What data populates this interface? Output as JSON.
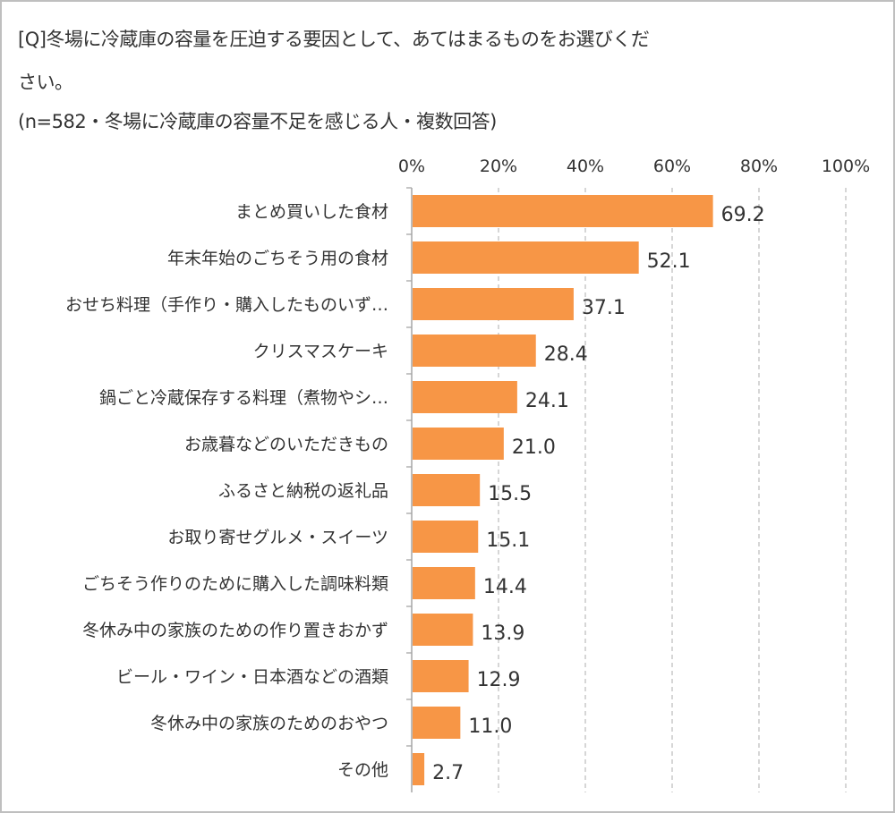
{
  "chart_data": {
    "type": "bar",
    "orientation": "horizontal",
    "title_lines": [
      "[Q]冬場に冷蔵庫の容量を圧迫する要因として、あてはまるものをお選びくだ",
      "さい。"
    ],
    "subtitle": "(n=582・冬場に冷蔵庫の容量不足を感じる人・複数回答)",
    "xlabel": "",
    "ylabel": "",
    "xlim": [
      0,
      100
    ],
    "x_ticks": [
      "0%",
      "20%",
      "40%",
      "60%",
      "80%",
      "100%"
    ],
    "x_tick_values": [
      0,
      20,
      40,
      60,
      80,
      100
    ],
    "axis_position": "top",
    "grid": "vertical dashed",
    "categories": [
      "まとめ買いした食材",
      "年末年始のごちそう用の食材",
      "おせち料理（手作り・購入したものいず…",
      "クリスマスケーキ",
      "鍋ごと冷蔵保存する料理（煮物やシ…",
      "お歳暮などのいただきもの",
      "ふるさと納税の返礼品",
      "お取り寄せグルメ・スイーツ",
      "ごちそう作りのために購入した調味料類",
      "冬休み中の家族のための作り置きおかず",
      "ビール・ワイン・日本酒などの酒類",
      "冬休み中の家族のためのおやつ",
      "その他"
    ],
    "values": [
      69.2,
      52.1,
      37.1,
      28.4,
      24.1,
      21.0,
      15.5,
      15.1,
      14.4,
      13.9,
      12.9,
      11.0,
      2.7
    ],
    "value_labels": [
      "69.2",
      "52.1",
      "37.1",
      "28.4",
      "24.1",
      "21.0",
      "15.5",
      "15.1",
      "14.4",
      "13.9",
      "12.9",
      "11.0",
      "2.7"
    ],
    "bar_color": "#F79646",
    "grid_color": "#bfbfbf"
  }
}
